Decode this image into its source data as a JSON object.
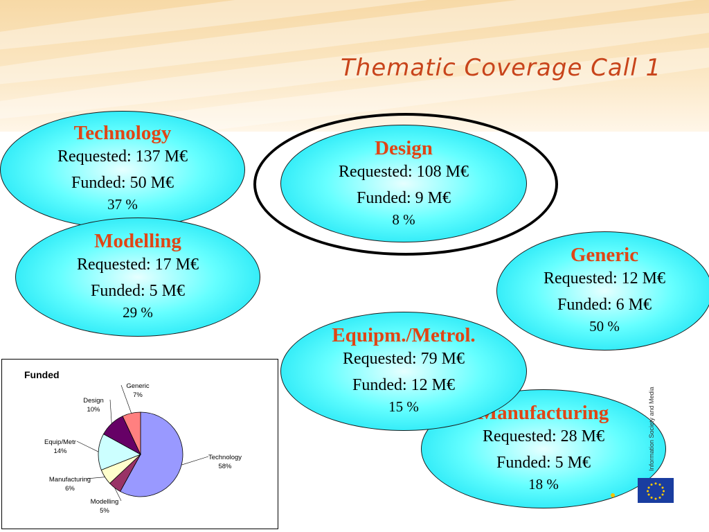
{
  "slide": {
    "title": "Thematic Coverage Call 1"
  },
  "bubbles": [
    {
      "name": "Technology",
      "requested": "Requested: 137 M€",
      "funded": "Funded: 50 M€",
      "percent": "37 %"
    },
    {
      "name": "Design",
      "requested": "Requested: 108 M€",
      "funded": "Funded: 9 M€",
      "percent": "8 %"
    },
    {
      "name": "Modelling",
      "requested": "Requested: 17 M€",
      "funded": "Funded: 5 M€",
      "percent": "29 %"
    },
    {
      "name": "Generic",
      "requested": "Requested: 12 M€",
      "funded": "Funded: 6 M€",
      "percent": "50 %"
    },
    {
      "name": "Equipm./Metrol.",
      "requested": "Requested: 79 M€",
      "funded": "Funded: 12 M€",
      "percent": "15 %"
    },
    {
      "name": "Manufacturing",
      "requested": "Requested: 28 M€",
      "funded": "Funded: 5 M€",
      "percent": "18 %"
    }
  ],
  "logo": {
    "text": "Information Society and Media"
  },
  "colors": {
    "title": "#c8441b",
    "bubble_name": "#e04515",
    "bubble_fill": "#00e0f0"
  },
  "chart_data": {
    "type": "pie",
    "title": "Funded",
    "categories": [
      "Technology",
      "Modelling",
      "Manufacturing",
      "Equip/Metr",
      "Design",
      "Generic"
    ],
    "values": [
      58,
      5,
      6,
      14,
      10,
      7
    ],
    "labels": [
      "58%",
      "5%",
      "6%",
      "14%",
      "10%",
      "7%"
    ],
    "colors": [
      "#9999ff",
      "#993366",
      "#ffffcc",
      "#ccffff",
      "#660066",
      "#ff8080"
    ]
  }
}
